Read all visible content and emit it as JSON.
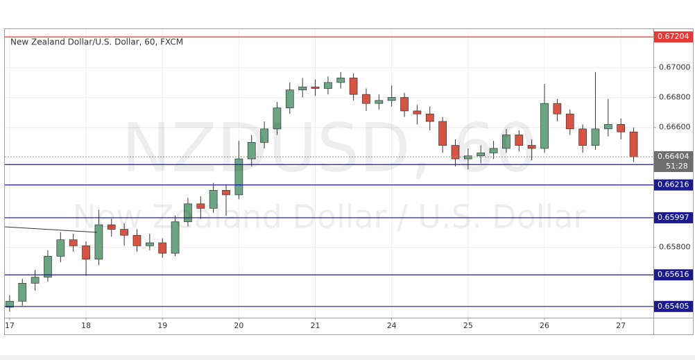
{
  "chart_data": {
    "type": "candlestick",
    "title": "New Zealand Dollar/U.S. Dollar, 60, FXCM",
    "watermark": [
      "NZDUSD, 60",
      "New Zealand Dollar / U.S. Dollar"
    ],
    "x": [
      0,
      4,
      8,
      12,
      16,
      20,
      24,
      28,
      32,
      36,
      40,
      44,
      48,
      52,
      56,
      60,
      64,
      68,
      72,
      76,
      80,
      84,
      88,
      92,
      96,
      100,
      104,
      108,
      112,
      116,
      120,
      124,
      128,
      132,
      136,
      140,
      144,
      148,
      152,
      156,
      160,
      164,
      168,
      172,
      176,
      180,
      184,
      188,
      192,
      196
    ],
    "open": [
      0.654,
      0.6544,
      0.6556,
      0.656,
      0.6574,
      0.6585,
      0.6581,
      0.6572,
      0.6595,
      0.6592,
      0.6588,
      0.6581,
      0.6583,
      0.6576,
      0.6597,
      0.6609,
      0.6606,
      0.6618,
      0.6615,
      0.6639,
      0.665,
      0.6659,
      0.6673,
      0.6685,
      0.6687,
      0.6686,
      0.669,
      0.6693,
      0.6682,
      0.6676,
      0.6678,
      0.668,
      0.6671,
      0.6669,
      0.6664,
      0.6648,
      0.6639,
      0.6641,
      0.6643,
      0.6646,
      0.6655,
      0.6648,
      0.6646,
      0.6676,
      0.6669,
      0.6659,
      0.6648,
      0.6659,
      0.6662,
      0.6657
    ],
    "high": [
      0.6548,
      0.6559,
      0.6565,
      0.6578,
      0.659,
      0.6589,
      0.6584,
      0.6605,
      0.6599,
      0.6596,
      0.6592,
      0.6589,
      0.6586,
      0.6601,
      0.6613,
      0.6614,
      0.6623,
      0.6622,
      0.6651,
      0.6655,
      0.6664,
      0.6677,
      0.669,
      0.6693,
      0.6692,
      0.6694,
      0.6697,
      0.6696,
      0.6686,
      0.6682,
      0.6688,
      0.6683,
      0.6675,
      0.6674,
      0.6667,
      0.6652,
      0.6646,
      0.6648,
      0.6651,
      0.6659,
      0.6658,
      0.6652,
      0.6689,
      0.6679,
      0.6672,
      0.6662,
      0.6697,
      0.6679,
      0.6666,
      0.666
    ],
    "low": [
      0.6537,
      0.6541,
      0.6551,
      0.6557,
      0.657,
      0.6577,
      0.6561,
      0.6568,
      0.6587,
      0.6581,
      0.6577,
      0.6578,
      0.6573,
      0.6574,
      0.6594,
      0.6599,
      0.6603,
      0.6601,
      0.6612,
      0.6634,
      0.6646,
      0.6655,
      0.6669,
      0.668,
      0.6681,
      0.6682,
      0.6686,
      0.6678,
      0.6671,
      0.6672,
      0.6674,
      0.6667,
      0.6662,
      0.6658,
      0.6643,
      0.6634,
      0.6632,
      0.6636,
      0.6639,
      0.6643,
      0.6644,
      0.6638,
      0.6643,
      0.6664,
      0.6655,
      0.6643,
      0.6645,
      0.6654,
      0.6652,
      0.6637
    ],
    "close": [
      0.6544,
      0.6556,
      0.656,
      0.6574,
      0.6585,
      0.6581,
      0.6572,
      0.6595,
      0.6592,
      0.6588,
      0.6581,
      0.6583,
      0.6576,
      0.6597,
      0.6609,
      0.6606,
      0.6618,
      0.6615,
      0.6639,
      0.665,
      0.6659,
      0.6673,
      0.6685,
      0.6687,
      0.6686,
      0.669,
      0.6693,
      0.6682,
      0.6676,
      0.6678,
      0.668,
      0.6671,
      0.6669,
      0.6664,
      0.6648,
      0.6639,
      0.6641,
      0.6643,
      0.6646,
      0.6655,
      0.6648,
      0.6646,
      0.6676,
      0.6669,
      0.6659,
      0.6648,
      0.6659,
      0.6662,
      0.6657,
      0.66404
    ],
    "up_color": "#6ba583",
    "down_color": "#d75442",
    "xlim": [
      -1.5,
      202.2
    ],
    "xticks": [
      {
        "value": 0,
        "label": "17"
      },
      {
        "value": 24,
        "label": "18"
      },
      {
        "value": 48,
        "label": "19"
      },
      {
        "value": 72,
        "label": "20"
      },
      {
        "value": 96,
        "label": "21"
      },
      {
        "value": 120,
        "label": "24"
      },
      {
        "value": 144,
        "label": "25"
      },
      {
        "value": 168,
        "label": "26"
      },
      {
        "value": 192,
        "label": "27"
      }
    ],
    "ylim": [
      0.6533,
      0.67256
    ],
    "yticks": [
      {
        "value": 0.658,
        "label": "0.65800"
      },
      {
        "value": 0.66,
        "label": "0.66000"
      },
      {
        "value": 0.662,
        "label": "0.66200"
      },
      {
        "value": 0.664,
        "label": "0.66400"
      },
      {
        "value": 0.666,
        "label": "0.66600"
      },
      {
        "value": 0.668,
        "label": "0.66800"
      },
      {
        "value": 0.67,
        "label": "0.67000"
      }
    ],
    "grid": true,
    "hlines": [
      {
        "value": 0.67204,
        "color": "#e53935"
      },
      {
        "value": 0.66352,
        "color": "#1a1a8c"
      },
      {
        "value": 0.66216,
        "color": "#1a1a8c"
      },
      {
        "value": 0.65997,
        "color": "#1a1a8c"
      },
      {
        "value": 0.65616,
        "color": "#1a1a8c"
      },
      {
        "value": 0.65405,
        "color": "#1a1a8c"
      }
    ],
    "last_price": 0.66404,
    "countdown": "51:28"
  }
}
